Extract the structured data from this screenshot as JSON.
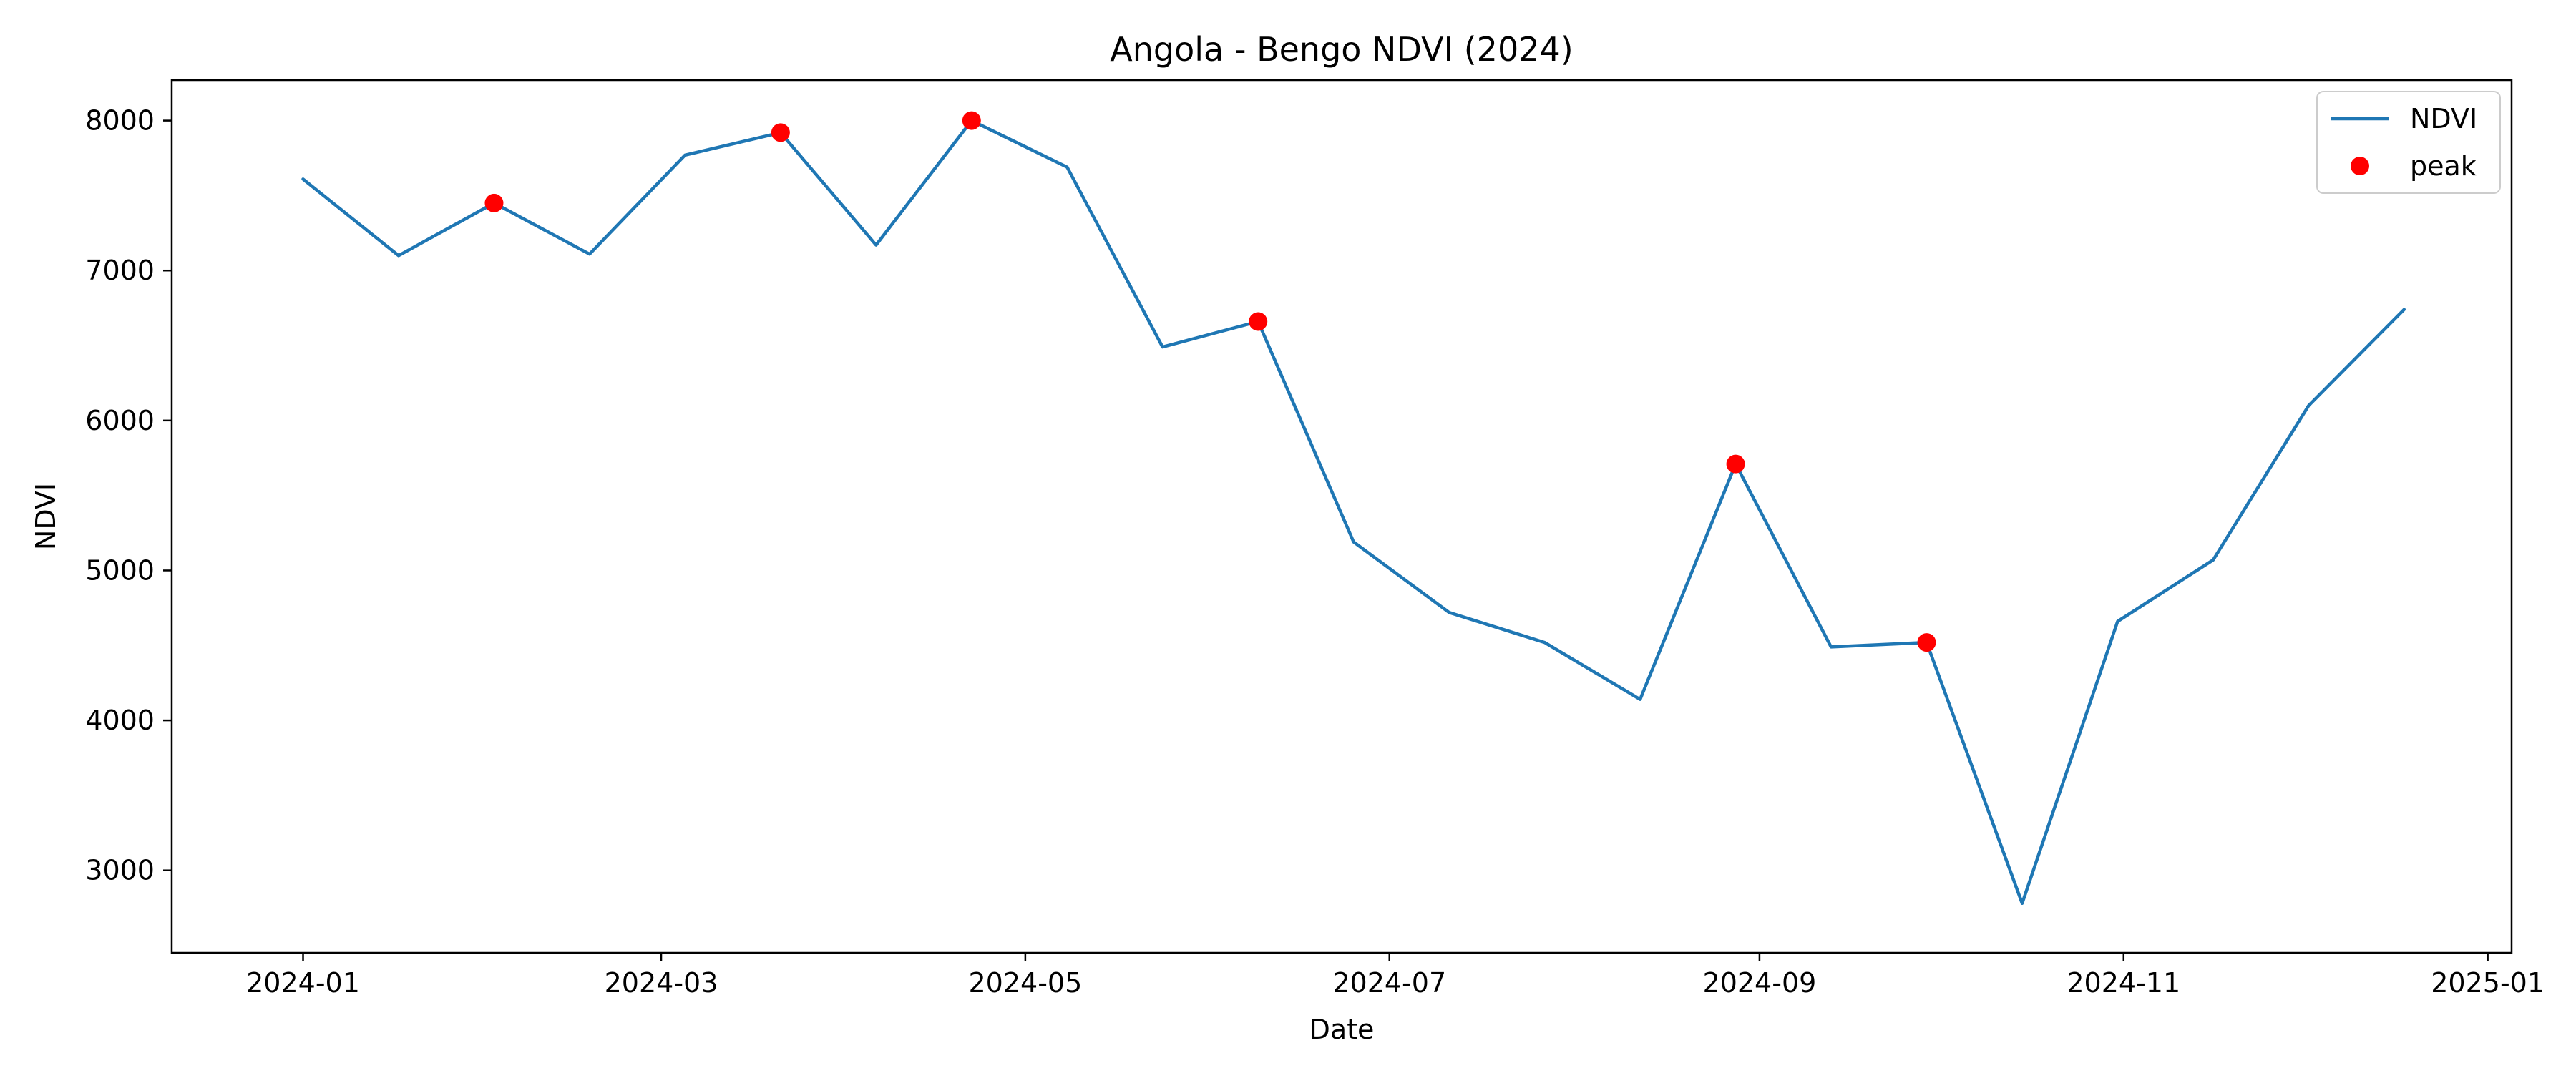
{
  "chart_data": {
    "type": "line",
    "title": "Angola - Bengo NDVI (2024)",
    "xlabel": "Date",
    "ylabel": "NDVI",
    "x_ticks": [
      {
        "label": "2024-01",
        "date": "2024-01-01"
      },
      {
        "label": "2024-03",
        "date": "2024-03-01"
      },
      {
        "label": "2024-05",
        "date": "2024-05-01"
      },
      {
        "label": "2024-07",
        "date": "2024-07-01"
      },
      {
        "label": "2024-09",
        "date": "2024-09-01"
      },
      {
        "label": "2024-11",
        "date": "2024-11-01"
      },
      {
        "label": "2025-01",
        "date": "2025-01-01"
      }
    ],
    "y_ticks": [
      3000,
      4000,
      5000,
      6000,
      7000,
      8000
    ],
    "xlim": [
      "2023-12-10",
      "2025-01-05"
    ],
    "ylim": [
      2450,
      8270
    ],
    "grid": false,
    "legend_position": "top-right",
    "series": [
      {
        "name": "NDVI",
        "kind": "line",
        "color": "#1f77b4",
        "x": [
          "2024-01-01",
          "2024-01-17",
          "2024-02-02",
          "2024-02-18",
          "2024-03-05",
          "2024-03-21",
          "2024-04-06",
          "2024-04-22",
          "2024-05-08",
          "2024-05-24",
          "2024-06-09",
          "2024-06-25",
          "2024-07-11",
          "2024-07-27",
          "2024-08-12",
          "2024-08-28",
          "2024-09-13",
          "2024-09-29",
          "2024-10-15",
          "2024-10-31",
          "2024-11-16",
          "2024-12-02",
          "2024-12-18"
        ],
        "values": [
          7610,
          7100,
          7450,
          7110,
          7770,
          7920,
          7170,
          8000,
          7690,
          6490,
          6660,
          5190,
          4720,
          4520,
          4140,
          5710,
          4490,
          4520,
          2780,
          4660,
          5070,
          6100,
          6740
        ]
      },
      {
        "name": "peak",
        "kind": "scatter",
        "color": "#ff0000",
        "x": [
          "2024-02-02",
          "2024-03-21",
          "2024-04-22",
          "2024-06-09",
          "2024-08-28",
          "2024-09-29"
        ],
        "values": [
          7450,
          7920,
          8000,
          6660,
          5710,
          4520
        ]
      }
    ]
  }
}
